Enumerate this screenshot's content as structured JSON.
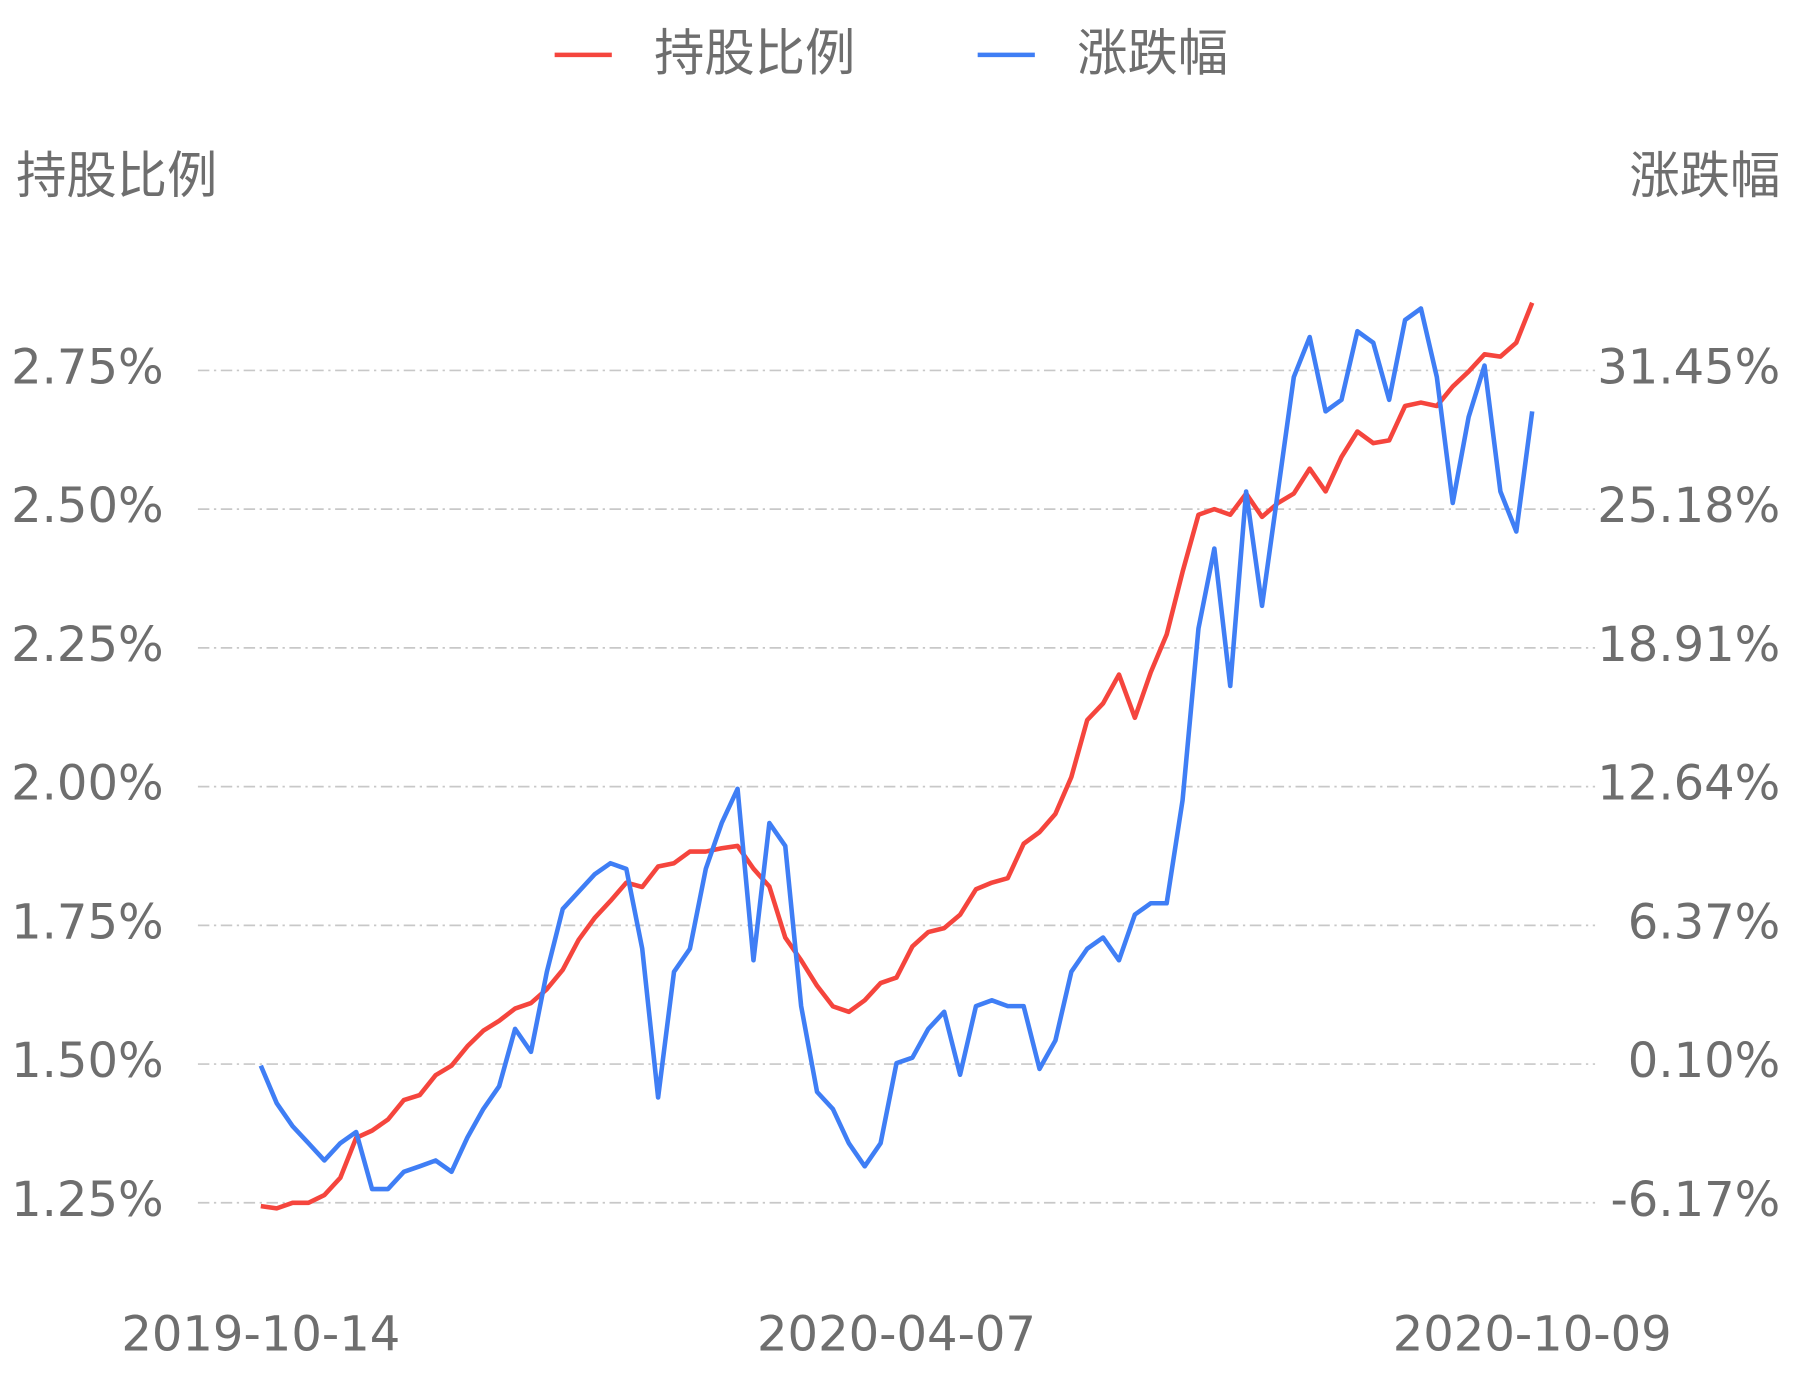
{
  "chart_data": {
    "type": "line",
    "legend": "top",
    "grid": true,
    "y_axis_title": "持股比例",
    "y2_axis_title": "涨跌幅",
    "categories": [
      "2019-10-14",
      null,
      null,
      null,
      null,
      null,
      null,
      null,
      null,
      null,
      null,
      null,
      null,
      null,
      null,
      null,
      null,
      null,
      null,
      null,
      null,
      null,
      null,
      null,
      null,
      null,
      null,
      null,
      null,
      null,
      null,
      null,
      null,
      null,
      null,
      null,
      null,
      null,
      null,
      null,
      "2020-04-07",
      null,
      null,
      null,
      null,
      null,
      null,
      null,
      null,
      null,
      null,
      null,
      null,
      null,
      null,
      null,
      null,
      null,
      null,
      null,
      null,
      null,
      null,
      null,
      null,
      null,
      null,
      null,
      null,
      null,
      null,
      null,
      null,
      null,
      null,
      null,
      null,
      null,
      null,
      null,
      "2020-10-09"
    ],
    "ylim": [
      1.25,
      3.0
    ],
    "yticks": [
      {
        "value": 1.25,
        "label": "1.25%"
      },
      {
        "value": 1.5,
        "label": "1.50%"
      },
      {
        "value": 1.75,
        "label": "1.75%"
      },
      {
        "value": 2.0,
        "label": "2.00%"
      },
      {
        "value": 2.25,
        "label": "2.25%"
      },
      {
        "value": 2.5,
        "label": "2.50%"
      },
      {
        "value": 2.75,
        "label": "2.75%"
      }
    ],
    "y2lim": [
      -6.17,
      37.72
    ],
    "y2ticks": [
      {
        "value": -6.17,
        "label": "-6.17%"
      },
      {
        "value": 0.1,
        "label": "0.10%"
      },
      {
        "value": 6.37,
        "label": "6.37%"
      },
      {
        "value": 12.64,
        "label": "12.64%"
      },
      {
        "value": 18.91,
        "label": "18.91%"
      },
      {
        "value": 25.18,
        "label": "25.18%"
      },
      {
        "value": 31.45,
        "label": "31.45%"
      }
    ],
    "series": [
      {
        "name": "持股比例",
        "color": "#f5453d",
        "values": [
          1.244,
          1.24,
          1.25,
          1.25,
          1.264,
          1.295,
          1.367,
          1.38,
          1.4,
          1.435,
          1.444,
          1.48,
          1.497,
          1.532,
          1.56,
          1.578,
          1.6,
          1.61,
          1.635,
          1.67,
          1.724,
          1.763,
          1.794,
          1.827,
          1.819,
          1.856,
          1.862,
          1.883,
          1.883,
          1.889,
          1.893,
          1.852,
          1.82,
          1.728,
          1.687,
          1.641,
          1.604,
          1.594,
          1.615,
          1.646,
          1.656,
          1.712,
          1.738,
          1.745,
          1.769,
          1.815,
          1.827,
          1.835,
          1.897,
          1.918,
          1.951,
          2.017,
          2.12,
          2.15,
          2.202,
          2.124,
          2.206,
          2.274,
          2.387,
          2.49,
          2.5,
          2.49,
          2.528,
          2.486,
          2.511,
          2.528,
          2.573,
          2.532,
          2.594,
          2.64,
          2.619,
          2.624,
          2.686,
          2.692,
          2.686,
          2.721,
          2.748,
          2.779,
          2.775,
          2.8,
          2.872
        ]
      },
      {
        "name": "涨跌幅",
        "color": "#3f7ef5",
        "axis": "y2",
        "values": [
          0.03,
          -1.67,
          -2.71,
          -3.48,
          -4.26,
          -3.48,
          -2.97,
          -5.55,
          -5.55,
          -4.77,
          -4.52,
          -4.26,
          -4.77,
          -3.22,
          -1.93,
          -0.9,
          1.69,
          0.65,
          4.27,
          7.11,
          7.89,
          8.67,
          9.18,
          8.92,
          5.31,
          -1.41,
          4.27,
          5.31,
          8.92,
          10.99,
          12.54,
          4.79,
          10.99,
          9.96,
          2.72,
          -1.16,
          -1.93,
          -3.48,
          -4.52,
          -3.48,
          0.14,
          0.39,
          1.69,
          2.46,
          -0.38,
          2.72,
          2.98,
          2.72,
          2.72,
          -0.12,
          1.17,
          4.27,
          5.31,
          5.82,
          4.79,
          6.86,
          7.37,
          7.37,
          12.02,
          19.78,
          23.4,
          17.19,
          25.98,
          20.81,
          25.98,
          31.15,
          32.96,
          29.6,
          30.12,
          33.22,
          32.7,
          30.12,
          33.73,
          34.25,
          31.15,
          25.46,
          29.34,
          31.67,
          25.98,
          24.17,
          29.6
        ]
      }
    ]
  }
}
